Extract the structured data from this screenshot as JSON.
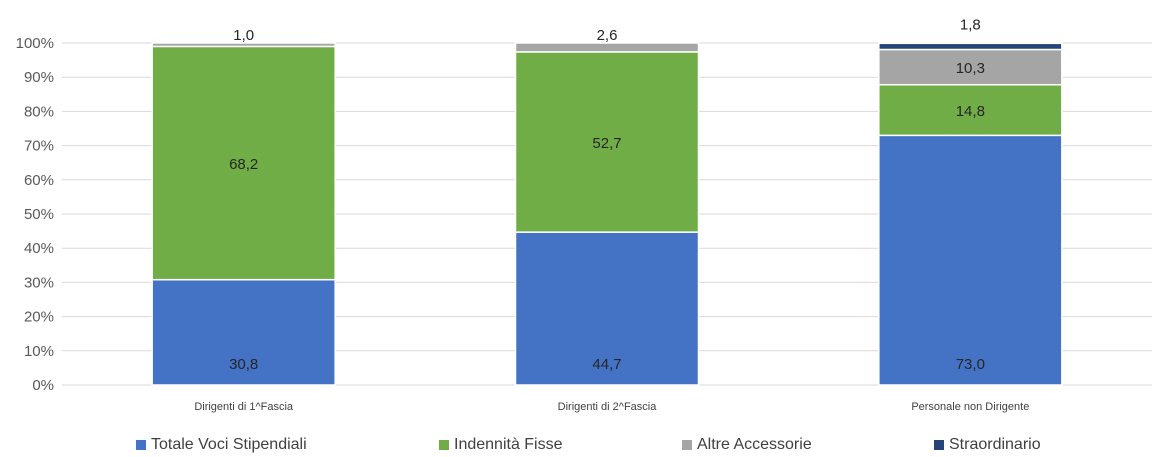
{
  "chart_data": {
    "type": "bar",
    "stacked": true,
    "categories": [
      "Dirigenti di 1^Fascia",
      "Dirigenti di 2^Fascia",
      "Personale non Dirigente"
    ],
    "ylim": [
      0,
      100
    ],
    "yticks": [
      "0%",
      "10%",
      "20%",
      "30%",
      "40%",
      "50%",
      "60%",
      "70%",
      "80%",
      "90%",
      "100%"
    ],
    "grid": true,
    "legend_position": "bottom",
    "series": [
      {
        "name": "Totale Voci Stipendiali",
        "values": [
          30.8,
          44.7,
          73.0
        ],
        "labels": [
          "30,8",
          "44,7",
          "73,0"
        ],
        "color": "#4472C4"
      },
      {
        "name": "Indennità Fisse",
        "values": [
          68.2,
          52.7,
          14.8
        ],
        "labels": [
          "68,2",
          "52,7",
          "14,8"
        ],
        "color": "#70AD47"
      },
      {
        "name": "Altre Accessorie",
        "values": [
          1.0,
          2.6,
          10.3
        ],
        "labels": [
          "1,0",
          "2,6",
          "10,3"
        ],
        "color": "#A5A5A5"
      },
      {
        "name": "Straordinario",
        "values": [
          0.0,
          0.0,
          1.8
        ],
        "labels": [
          "",
          "",
          "1,8"
        ],
        "color": "#264478"
      }
    ]
  }
}
